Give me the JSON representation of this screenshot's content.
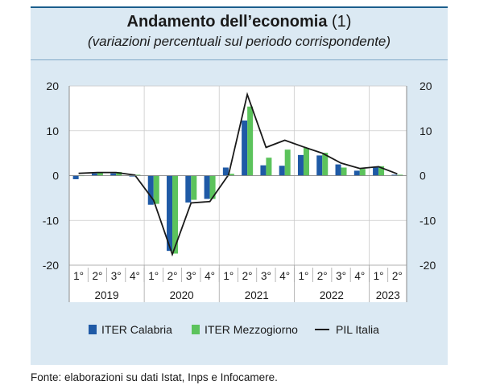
{
  "header": {
    "title_main": "Andamento dell’economia",
    "title_note": "(1)",
    "subtitle": "(variazioni percentuali sul periodo corrispondente)"
  },
  "footer": {
    "source": "Fonte: elaborazioni su dati Istat, Inps e Infocamere."
  },
  "chart_data": {
    "type": "bar",
    "ylim": [
      -20,
      20
    ],
    "yticks": [
      20,
      10,
      0,
      -10,
      -20
    ],
    "categories": [
      "1°",
      "2°",
      "3°",
      "4°",
      "1°",
      "2°",
      "3°",
      "4°",
      "1°",
      "2°",
      "3°",
      "4°",
      "1°",
      "2°",
      "3°",
      "4°",
      "1°",
      "2°"
    ],
    "years": [
      {
        "label": "2019",
        "quarters": 4
      },
      {
        "label": "2020",
        "quarters": 4
      },
      {
        "label": "2021",
        "quarters": 4
      },
      {
        "label": "2022",
        "quarters": 4
      },
      {
        "label": "2023",
        "quarters": 2
      }
    ],
    "series": [
      {
        "name": "ITER Calabria",
        "kind": "bar",
        "color": "#1f5aa6",
        "values": [
          -0.8,
          0.5,
          0.5,
          -0.2,
          -6.5,
          -16.8,
          -6.0,
          -5.2,
          1.8,
          12.3,
          2.3,
          2.2,
          4.6,
          4.5,
          2.5,
          1.1,
          1.9,
          0.2
        ]
      },
      {
        "name": "ITER Mezzogiorno",
        "kind": "bar",
        "color": "#5cc35c",
        "values": [
          0.0,
          0.8,
          0.8,
          0.2,
          -6.3,
          -17.4,
          -5.4,
          -5.2,
          0.4,
          15.4,
          4.0,
          5.8,
          6.2,
          5.1,
          1.8,
          1.5,
          2.1,
          0.2
        ]
      },
      {
        "name": "PIL Italia",
        "kind": "line",
        "color": "#1a1a1a",
        "values": [
          0.5,
          0.7,
          0.7,
          0.1,
          -5.5,
          -17.6,
          -6.1,
          -5.8,
          0.2,
          18.1,
          6.3,
          7.9,
          6.4,
          5.0,
          2.8,
          1.6,
          2.0,
          0.4
        ]
      }
    ],
    "legend_position": "bottom"
  }
}
